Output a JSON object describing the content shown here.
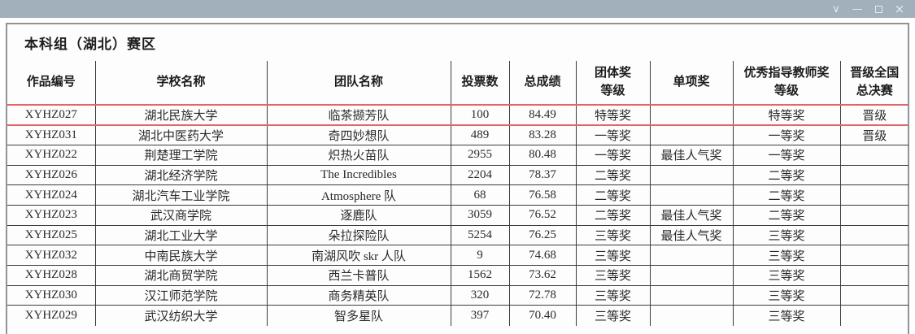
{
  "window": {
    "controls": [
      {
        "name": "chevron-down-icon",
        "glyph": "∨"
      },
      {
        "name": "minimize-icon",
        "glyph": "—"
      },
      {
        "name": "maximize-icon",
        "glyph": ""
      },
      {
        "name": "close-icon",
        "glyph": "×"
      }
    ]
  },
  "page": {
    "title": "本科组（湖北）赛区"
  },
  "colors": {
    "titlebar": "#a2b0bc",
    "table_border": "#3c3c3c",
    "highlight_red": "#e06767",
    "page_frame": "#8f9398"
  },
  "table": {
    "columns": [
      {
        "id": "work-id",
        "lines": [
          "作品编号"
        ]
      },
      {
        "id": "school-name",
        "lines": [
          "学校名称"
        ]
      },
      {
        "id": "team-name",
        "lines": [
          "团队名称"
        ]
      },
      {
        "id": "vote-count",
        "lines": [
          "投票数"
        ]
      },
      {
        "id": "total-score",
        "lines": [
          "总成绩"
        ]
      },
      {
        "id": "group-award",
        "lines": [
          "团体奖",
          "等级"
        ]
      },
      {
        "id": "single-award",
        "lines": [
          "单项奖"
        ]
      },
      {
        "id": "teacher-award",
        "lines": [
          "优秀指导教师奖",
          "等级"
        ]
      },
      {
        "id": "finals-status",
        "lines": [
          "晋级全国",
          "总决赛"
        ]
      }
    ],
    "rows": [
      {
        "highlighted": true,
        "cells": [
          "XYHZ027",
          "湖北民族大学",
          "临茶撷芳队",
          "100",
          "84.49",
          "特等奖",
          "",
          "特等奖",
          "晋级"
        ]
      },
      {
        "highlighted": false,
        "cells": [
          "XYHZ031",
          "湖北中医药大学",
          "奇四妙想队",
          "489",
          "83.28",
          "一等奖",
          "",
          "一等奖",
          "晋级"
        ]
      },
      {
        "highlighted": false,
        "cells": [
          "XYHZ022",
          "荆楚理工学院",
          "炽热火苗队",
          "2955",
          "80.48",
          "一等奖",
          "最佳人气奖",
          "一等奖",
          ""
        ]
      },
      {
        "highlighted": false,
        "cells": [
          "XYHZ026",
          "湖北经济学院",
          "The Incredibles",
          "2204",
          "78.37",
          "二等奖",
          "",
          "二等奖",
          ""
        ]
      },
      {
        "highlighted": false,
        "cells": [
          "XYHZ024",
          "湖北汽车工业学院",
          "Atmosphere 队",
          "68",
          "76.58",
          "二等奖",
          "",
          "二等奖",
          ""
        ]
      },
      {
        "highlighted": false,
        "cells": [
          "XYHZ023",
          "武汉商学院",
          "逐鹿队",
          "3059",
          "76.52",
          "二等奖",
          "最佳人气奖",
          "二等奖",
          ""
        ]
      },
      {
        "highlighted": false,
        "cells": [
          "XYHZ025",
          "湖北工业大学",
          "朵拉探险队",
          "5254",
          "76.25",
          "三等奖",
          "最佳人气奖",
          "三等奖",
          ""
        ]
      },
      {
        "highlighted": false,
        "cells": [
          "XYHZ032",
          "中南民族大学",
          "南湖风吹 skr 人队",
          "9",
          "74.68",
          "三等奖",
          "",
          "三等奖",
          ""
        ]
      },
      {
        "highlighted": false,
        "cells": [
          "XYHZ028",
          "湖北商贸学院",
          "西兰卡普队",
          "1562",
          "73.62",
          "三等奖",
          "",
          "三等奖",
          ""
        ]
      },
      {
        "highlighted": false,
        "cells": [
          "XYHZ030",
          "汉江师范学院",
          "商务精英队",
          "320",
          "72.78",
          "三等奖",
          "",
          "三等奖",
          ""
        ]
      },
      {
        "highlighted": false,
        "cells": [
          "XYHZ029",
          "武汉纺织大学",
          "智多星队",
          "397",
          "70.40",
          "三等奖",
          "",
          "三等奖",
          ""
        ]
      }
    ]
  }
}
